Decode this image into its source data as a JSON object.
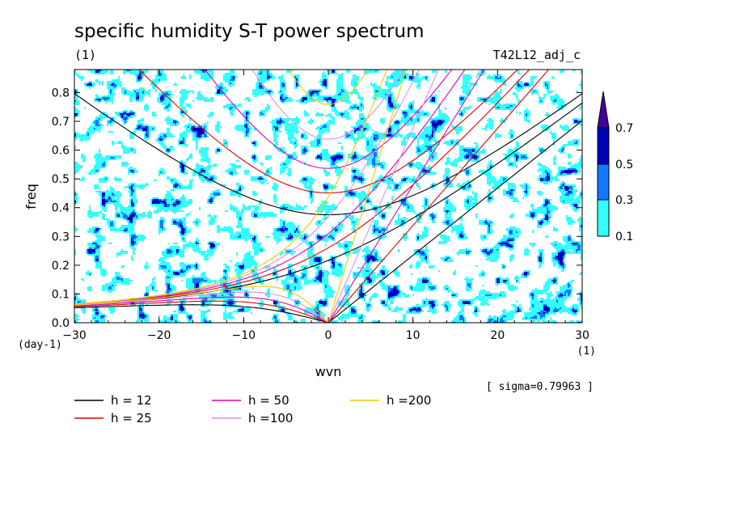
{
  "chart_data": {
    "type": "contour",
    "title": "specific humidity S-T power spectrum",
    "subtitle_left": "(1)",
    "subtitle_right": "T42L12_adj_c",
    "xlabel": "wvn",
    "ylabel": "freq",
    "x_unit_label": "(1)",
    "y_unit_label": "(day-1)",
    "xlim": [
      -30,
      30
    ],
    "ylim": [
      0,
      0.88
    ],
    "xticks": [
      -30,
      -20,
      -10,
      0,
      10,
      20,
      30
    ],
    "yticks": [
      0.0,
      0.1,
      0.2,
      0.3,
      0.4,
      0.5,
      0.6,
      0.7,
      0.8
    ],
    "ytick_labels": [
      "0.0",
      "0.1",
      "0.2",
      "0.3",
      "0.4",
      "0.5",
      "0.6",
      "0.7",
      "0.8"
    ],
    "annotation": "[ sigma=0.79963 ]",
    "colorbar": {
      "levels": [
        "0.1",
        "0.3",
        "0.5",
        "0.7"
      ],
      "colors": [
        "#33ffff",
        "#1177ff",
        "#0000bb",
        "#440099"
      ]
    },
    "dispersion_curves": [
      {
        "label": "h = 12",
        "h": 12,
        "color": "#000000"
      },
      {
        "label": "h = 25",
        "h": 25,
        "color": "#dd0000"
      },
      {
        "label": "h = 50",
        "h": 50,
        "color": "#dd00bb"
      },
      {
        "label": "h =100",
        "h": 100,
        "color": "#e090e0"
      },
      {
        "label": "h =200",
        "h": 200,
        "color": "#eecc00"
      }
    ]
  }
}
